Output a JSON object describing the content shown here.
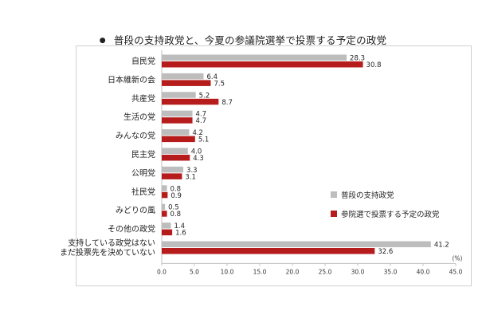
{
  "title": "普段の支持政党と、今夏の参議院選挙で投票する予定の政党",
  "title_bullet": "●",
  "colors": {
    "series1": "#bdbdbd",
    "series2": "#b71c1c",
    "axis": "#bfbfbf"
  },
  "chart_data": {
    "type": "bar",
    "orientation": "horizontal",
    "title": "普段の支持政党と、今夏の参議院選挙で投票する予定の政党",
    "categories": [
      [
        "自民党"
      ],
      [
        "日本維新の会"
      ],
      [
        "共産党"
      ],
      [
        "生活の党"
      ],
      [
        "みんなの党"
      ],
      [
        "民主党"
      ],
      [
        "公明党"
      ],
      [
        "社民党"
      ],
      [
        "みどりの風"
      ],
      [
        "その他の政党"
      ],
      [
        "支持している政党はない",
        "まだ投票先を決めていない"
      ]
    ],
    "series": [
      {
        "name": "普段の支持政党",
        "values": [
          28.3,
          6.4,
          5.2,
          4.7,
          4.2,
          4.0,
          3.3,
          0.8,
          0.5,
          1.4,
          41.2
        ]
      },
      {
        "name": "参院選で投票する予定の政党",
        "values": [
          30.8,
          7.5,
          8.7,
          4.7,
          5.1,
          4.3,
          3.1,
          0.9,
          0.8,
          1.6,
          32.6
        ]
      }
    ],
    "value_labels": [
      [
        "28.3",
        "6.4",
        "5.2",
        "4.7",
        "4.2",
        "4.0",
        "3.3",
        "0.8",
        "0.5",
        "1.4",
        "41.2"
      ],
      [
        "30.8",
        "7.5",
        "8.7",
        "4.7",
        "5.1",
        "4.3",
        "3.1",
        "0.9",
        "0.8",
        "1.6",
        "32.6"
      ]
    ],
    "xlim": [
      0,
      45
    ],
    "xticks": [
      0,
      5,
      10,
      15,
      20,
      25,
      30,
      35,
      40,
      45
    ],
    "xtick_labels": [
      "0.0",
      "5.0",
      "10.0",
      "15.0",
      "20.0",
      "25.0",
      "30.0",
      "35.0",
      "40.0",
      "45.0"
    ],
    "xunit": "(%)",
    "grid": false,
    "legend_position": "right"
  }
}
